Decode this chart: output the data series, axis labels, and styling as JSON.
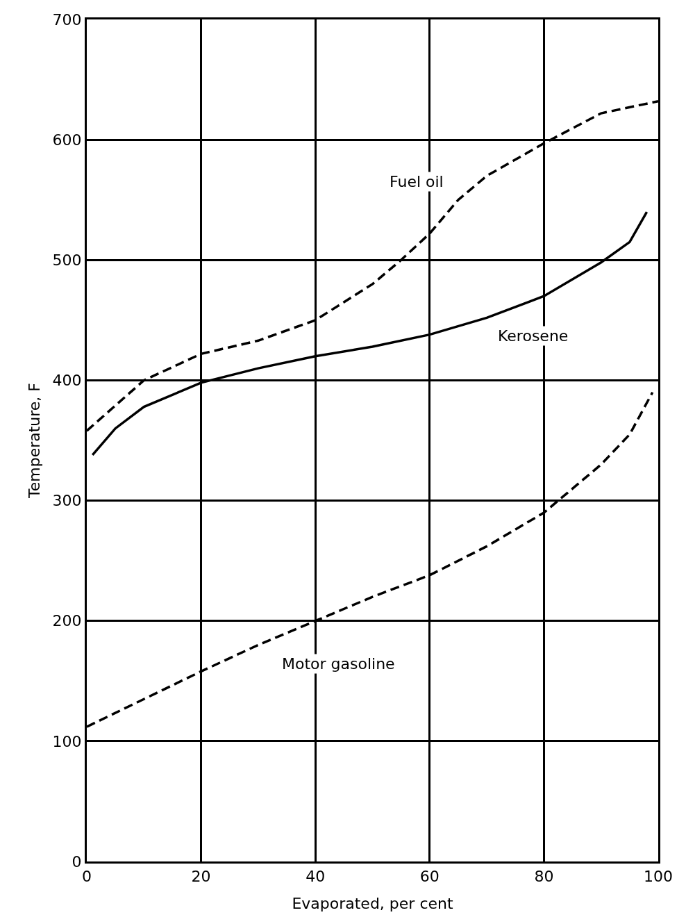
{
  "chart_data": {
    "type": "line",
    "xlabel": "Evaporated, per cent",
    "ylabel": "Temperature, F",
    "xlim": [
      0,
      100
    ],
    "ylim": [
      0,
      700
    ],
    "xticks": [
      0,
      20,
      40,
      60,
      80,
      100
    ],
    "yticks": [
      0,
      100,
      200,
      300,
      400,
      500,
      600,
      700
    ],
    "grid": true,
    "legend": false,
    "marker": "none",
    "series": [
      {
        "name": "Fuel oil",
        "color": "#000000",
        "line_style": "dashed",
        "x": [
          0,
          10,
          20,
          30,
          40,
          50,
          55,
          60,
          65,
          70,
          80,
          90,
          100
        ],
        "values": [
          358,
          400,
          422,
          433,
          450,
          480,
          500,
          522,
          550,
          570,
          597,
          622,
          632
        ]
      },
      {
        "name": "Kerosene",
        "color": "#000000",
        "line_style": "solid",
        "x": [
          1,
          5,
          10,
          20,
          30,
          40,
          50,
          60,
          70,
          80,
          90,
          95,
          98
        ],
        "values": [
          338,
          360,
          378,
          398,
          410,
          420,
          428,
          438,
          452,
          470,
          498,
          515,
          540
        ]
      },
      {
        "name": "Motor gasoline",
        "color": "#000000",
        "line_style": "dashed",
        "x": [
          0,
          10,
          20,
          30,
          40,
          50,
          60,
          70,
          80,
          90,
          95,
          99
        ],
        "values": [
          112,
          135,
          158,
          180,
          200,
          220,
          238,
          262,
          290,
          330,
          355,
          390
        ]
      }
    ]
  }
}
